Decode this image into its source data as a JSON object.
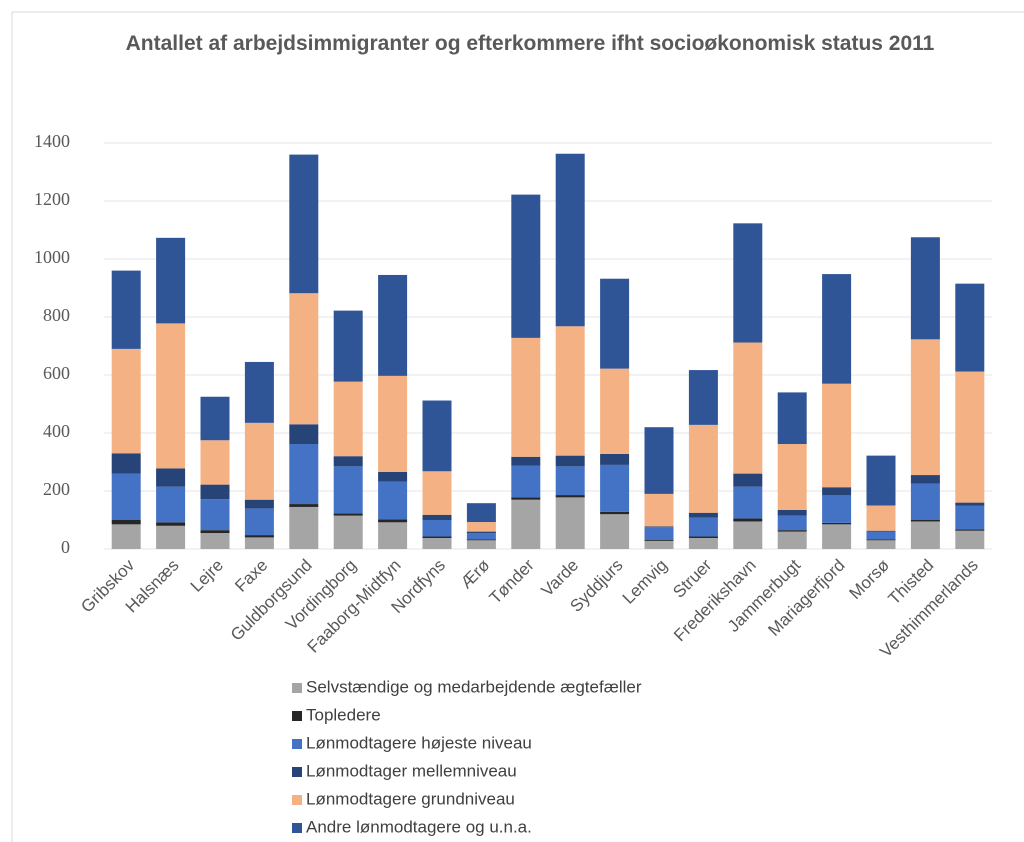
{
  "chart_data": {
    "type": "stacked_bar",
    "title": "Antallet af arbejdsimmigranter og efterkommere ifht socioøkonomisk status 2011",
    "categories": [
      "Gribskov",
      "Halsnæs",
      "Lejre",
      "Faxe",
      "Guldborgsund",
      "Vordingborg",
      "Faaborg-Midtfyn",
      "Nordfyns",
      "Ærø",
      "Tønder",
      "Varde",
      "Syddjurs",
      "Lemvig",
      "Struer",
      "Frederikshavn",
      "Jammerbugt",
      "Mariagerfjord",
      "Morsø",
      "Thisted",
      "Vesthimmerlands"
    ],
    "series": [
      {
        "name": "Selvstændige og medarbejdende ægtefæller",
        "color": "#a5a5a5",
        "values": [
          85,
          80,
          55,
          40,
          145,
          115,
          92,
          38,
          30,
          170,
          178,
          120,
          28,
          38,
          95,
          60,
          85,
          30,
          95,
          63
        ]
      },
      {
        "name": "Topledere",
        "color": "#262626",
        "values": [
          15,
          12,
          10,
          8,
          10,
          8,
          10,
          5,
          3,
          8,
          8,
          8,
          3,
          5,
          10,
          5,
          5,
          3,
          5,
          5
        ]
      },
      {
        "name": "Lønmodtagere højeste niveau",
        "color": "#4472c4",
        "values": [
          160,
          123,
          107,
          92,
          207,
          162,
          130,
          57,
          22,
          110,
          99,
          162,
          44,
          65,
          110,
          50,
          95,
          27,
          125,
          82
        ]
      },
      {
        "name": "Lønmodtager mellemniveau",
        "color": "#264478",
        "values": [
          70,
          63,
          50,
          30,
          68,
          35,
          34,
          18,
          5,
          30,
          37,
          38,
          3,
          17,
          45,
          20,
          28,
          3,
          30,
          10
        ]
      },
      {
        "name": "Lønmodtagere grundniveau",
        "color": "#f4b183",
        "values": [
          360,
          500,
          153,
          265,
          452,
          257,
          331,
          150,
          33,
          410,
          446,
          294,
          112,
          303,
          452,
          227,
          357,
          87,
          468,
          452
        ]
      },
      {
        "name": "Andre lønmodtagere og u.n.a.",
        "color": "#2f5597",
        "values": [
          270,
          295,
          150,
          210,
          478,
          245,
          348,
          244,
          65,
          494,
          595,
          310,
          230,
          189,
          411,
          178,
          378,
          172,
          352,
          303
        ]
      }
    ],
    "ylim": [
      0,
      1400
    ],
    "yticks": [
      0,
      200,
      400,
      600,
      800,
      1000,
      1200,
      1400
    ],
    "grid": true,
    "legend": "bottom"
  }
}
